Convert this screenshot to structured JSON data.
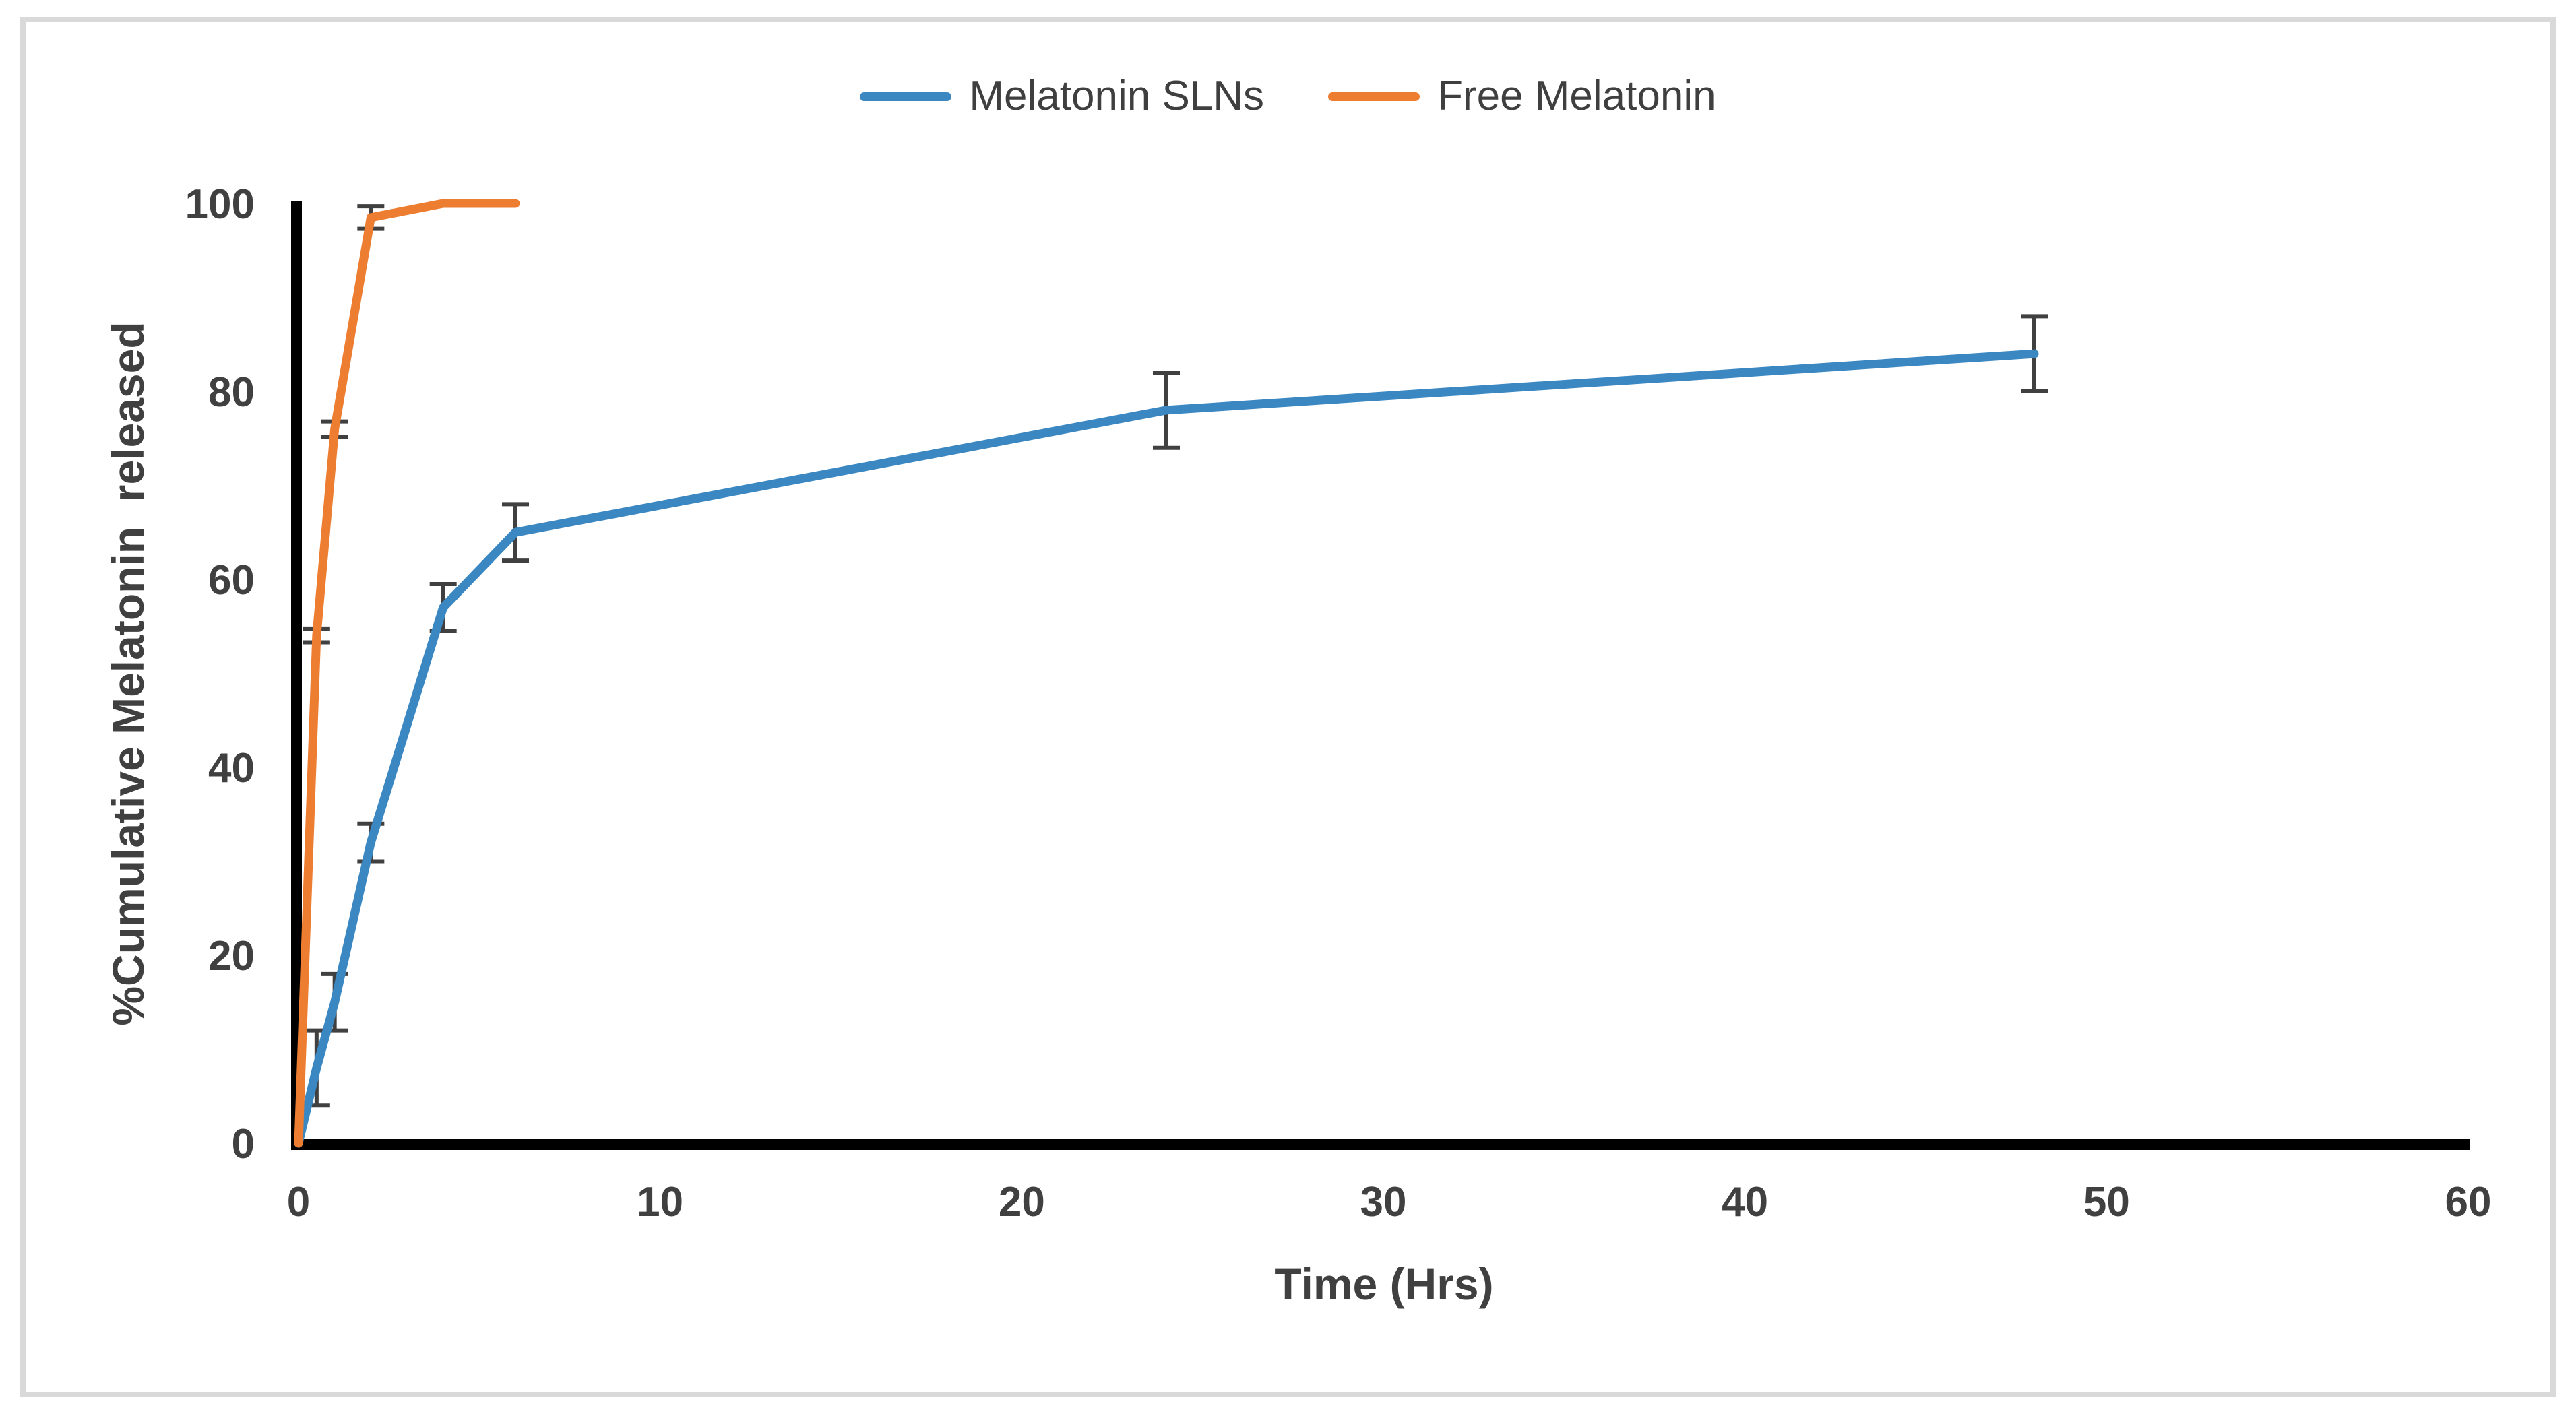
{
  "chart_data": {
    "type": "line",
    "title": "",
    "xlabel": "Time (Hrs)",
    "ylabel": "%Cumulative Melatonin  released",
    "xlim": [
      0,
      60
    ],
    "ylim": [
      0,
      100
    ],
    "x_ticks": [
      0,
      10,
      20,
      30,
      40,
      50,
      60
    ],
    "y_ticks": [
      0,
      20,
      40,
      60,
      80,
      100
    ],
    "grid": false,
    "legend_position": "top-center",
    "error_bar_color": "#404040",
    "axis_color": "#000000",
    "tick_label_color": "#404040",
    "series": [
      {
        "name": "Melatonin SLNs",
        "color": "#3A87C2",
        "x": [
          0,
          0.5,
          1,
          2,
          4,
          6,
          24,
          48
        ],
        "y": [
          0,
          8,
          15,
          32,
          57,
          65,
          78,
          84
        ],
        "yerr": [
          0,
          4,
          3,
          2,
          2.5,
          3,
          4,
          4
        ]
      },
      {
        "name": "Free Melatonin",
        "color": "#ED7D31",
        "x": [
          0,
          0.5,
          1,
          2,
          4,
          6
        ],
        "y": [
          0,
          54,
          76,
          98.5,
          100,
          100
        ],
        "yerr": [
          0,
          0.7,
          0.8,
          1.2,
          0,
          0
        ]
      }
    ]
  }
}
